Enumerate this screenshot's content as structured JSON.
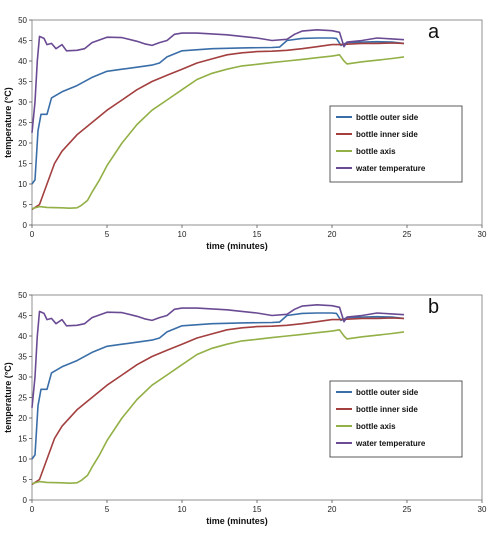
{
  "chart_data": [
    {
      "type": "line",
      "panel_label": "a",
      "xlabel": "time (minutes)",
      "ylabel": "temperature (°C)",
      "xlim": [
        0,
        30
      ],
      "ylim": [
        0,
        50
      ],
      "xticks": [
        0,
        5,
        10,
        15,
        20,
        25,
        30
      ],
      "yticks": [
        0,
        5,
        10,
        15,
        20,
        25,
        30,
        35,
        40,
        45,
        50
      ],
      "legend_position": "right-middle",
      "grid": false,
      "series": [
        {
          "name": "bottle outer side",
          "color": "#3a6ea8",
          "points": [
            [
              0,
              10
            ],
            [
              0.2,
              11
            ],
            [
              0.4,
              23
            ],
            [
              0.6,
              27
            ],
            [
              1,
              27
            ],
            [
              1.3,
              31
            ],
            [
              2,
              32.5
            ],
            [
              3,
              34
            ],
            [
              4,
              36
            ],
            [
              5,
              37.5
            ],
            [
              6,
              38
            ],
            [
              7,
              38.5
            ],
            [
              8,
              39
            ],
            [
              8.5,
              39.5
            ],
            [
              9,
              41
            ],
            [
              10,
              42.5
            ],
            [
              12,
              43
            ],
            [
              14,
              43.2
            ],
            [
              16,
              43.3
            ],
            [
              16.5,
              43.4
            ],
            [
              17,
              45
            ],
            [
              18,
              45.5
            ],
            [
              19,
              45.6
            ],
            [
              20,
              45.6
            ],
            [
              20.3,
              45.5
            ],
            [
              20.6,
              43.8
            ],
            [
              21,
              44.5
            ],
            [
              23,
              44.7
            ],
            [
              24,
              44.6
            ],
            [
              24.8,
              44.3
            ]
          ]
        },
        {
          "name": "bottle inner side",
          "color": "#a33f3f",
          "points": [
            [
              0,
              3.8
            ],
            [
              0.5,
              5
            ],
            [
              1,
              10
            ],
            [
              1.5,
              15
            ],
            [
              2,
              18
            ],
            [
              3,
              22
            ],
            [
              4,
              25
            ],
            [
              5,
              28
            ],
            [
              6,
              30.5
            ],
            [
              7,
              33
            ],
            [
              8,
              35
            ],
            [
              9,
              36.5
            ],
            [
              10,
              38
            ],
            [
              11,
              39.5
            ],
            [
              12,
              40.5
            ],
            [
              13,
              41.5
            ],
            [
              14,
              42
            ],
            [
              15,
              42.3
            ],
            [
              16,
              42.4
            ],
            [
              17,
              42.6
            ],
            [
              18,
              43
            ],
            [
              19,
              43.5
            ],
            [
              20,
              44
            ],
            [
              20.5,
              44
            ],
            [
              21,
              44.1
            ],
            [
              22,
              44.3
            ],
            [
              23,
              44.3
            ],
            [
              24,
              44.4
            ],
            [
              24.8,
              44.3
            ]
          ]
        },
        {
          "name": "bottle axis",
          "color": "#92b046",
          "points": [
            [
              0,
              4
            ],
            [
              0.5,
              4.5
            ],
            [
              1,
              4.3
            ],
            [
              2,
              4.2
            ],
            [
              2.5,
              4.1
            ],
            [
              3,
              4.2
            ],
            [
              3.3,
              4.8
            ],
            [
              3.7,
              6
            ],
            [
              4,
              8
            ],
            [
              4.5,
              11
            ],
            [
              5,
              14.5
            ],
            [
              6,
              20
            ],
            [
              7,
              24.5
            ],
            [
              8,
              28
            ],
            [
              9,
              30.5
            ],
            [
              10,
              33
            ],
            [
              11,
              35.5
            ],
            [
              12,
              37
            ],
            [
              13,
              38
            ],
            [
              14,
              38.8
            ],
            [
              15,
              39.2
            ],
            [
              16,
              39.6
            ],
            [
              17,
              40
            ],
            [
              18,
              40.4
            ],
            [
              19,
              40.8
            ],
            [
              20,
              41.2
            ],
            [
              20.5,
              41.5
            ],
            [
              20.8,
              40
            ],
            [
              21,
              39.3
            ],
            [
              22,
              39.8
            ],
            [
              23,
              40.2
            ],
            [
              24,
              40.6
            ],
            [
              24.8,
              41
            ]
          ]
        },
        {
          "name": "water temperature",
          "color": "#6a4b93",
          "points": [
            [
              0,
              22.5
            ],
            [
              0.2,
              30
            ],
            [
              0.35,
              40
            ],
            [
              0.5,
              46
            ],
            [
              0.8,
              45.5
            ],
            [
              1,
              44
            ],
            [
              1.3,
              44.3
            ],
            [
              1.6,
              43
            ],
            [
              2,
              44
            ],
            [
              2.3,
              42.5
            ],
            [
              3,
              42.6
            ],
            [
              3.5,
              43
            ],
            [
              4,
              44.5
            ],
            [
              5,
              45.8
            ],
            [
              6,
              45.7
            ],
            [
              7,
              44.8
            ],
            [
              7.5,
              44.2
            ],
            [
              8,
              43.8
            ],
            [
              8.5,
              44.5
            ],
            [
              9,
              45
            ],
            [
              9.5,
              46.5
            ],
            [
              10,
              46.8
            ],
            [
              11,
              46.8
            ],
            [
              12,
              46.6
            ],
            [
              13,
              46.4
            ],
            [
              14,
              46
            ],
            [
              15,
              45.6
            ],
            [
              16,
              45
            ],
            [
              17,
              45.3
            ],
            [
              17.5,
              46.5
            ],
            [
              18,
              47.3
            ],
            [
              19,
              47.6
            ],
            [
              20,
              47.4
            ],
            [
              20.5,
              47
            ],
            [
              20.8,
              43.5
            ],
            [
              21,
              44.6
            ],
            [
              22,
              45
            ],
            [
              23,
              45.6
            ],
            [
              24,
              45.4
            ],
            [
              24.8,
              45.2
            ]
          ]
        }
      ]
    },
    {
      "type": "line",
      "panel_label": "b",
      "xlabel": "time (minutes)",
      "ylabel": "temperature (°C)",
      "xlim": [
        0,
        30
      ],
      "ylim": [
        0,
        50
      ],
      "xticks": [
        0,
        5,
        10,
        15,
        20,
        25,
        30
      ],
      "yticks": [
        0,
        5,
        10,
        15,
        20,
        25,
        30,
        35,
        40,
        45,
        50
      ],
      "legend_position": "right-middle",
      "grid": false,
      "series": [
        {
          "name": "bottle outer side",
          "color": "#3a6ea8",
          "points": [
            [
              0,
              10
            ],
            [
              0.2,
              11
            ],
            [
              0.4,
              23
            ],
            [
              0.6,
              27
            ],
            [
              1,
              27
            ],
            [
              1.3,
              31
            ],
            [
              2,
              32.5
            ],
            [
              3,
              34
            ],
            [
              4,
              36
            ],
            [
              5,
              37.5
            ],
            [
              6,
              38
            ],
            [
              7,
              38.5
            ],
            [
              8,
              39
            ],
            [
              8.5,
              39.5
            ],
            [
              9,
              41
            ],
            [
              10,
              42.5
            ],
            [
              12,
              43
            ],
            [
              14,
              43.2
            ],
            [
              16,
              43.3
            ],
            [
              16.5,
              43.4
            ],
            [
              17,
              45
            ],
            [
              18,
              45.5
            ],
            [
              19,
              45.6
            ],
            [
              20,
              45.6
            ],
            [
              20.3,
              45.5
            ],
            [
              20.6,
              43.8
            ],
            [
              21,
              44.5
            ],
            [
              23,
              44.7
            ],
            [
              24,
              44.6
            ],
            [
              24.8,
              44.3
            ]
          ]
        },
        {
          "name": "bottle inner side",
          "color": "#a33f3f",
          "points": [
            [
              0,
              3.8
            ],
            [
              0.5,
              5
            ],
            [
              1,
              10
            ],
            [
              1.5,
              15
            ],
            [
              2,
              18
            ],
            [
              3,
              22
            ],
            [
              4,
              25
            ],
            [
              5,
              28
            ],
            [
              6,
              30.5
            ],
            [
              7,
              33
            ],
            [
              8,
              35
            ],
            [
              9,
              36.5
            ],
            [
              10,
              38
            ],
            [
              11,
              39.5
            ],
            [
              12,
              40.5
            ],
            [
              13,
              41.5
            ],
            [
              14,
              42
            ],
            [
              15,
              42.3
            ],
            [
              16,
              42.4
            ],
            [
              17,
              42.6
            ],
            [
              18,
              43
            ],
            [
              19,
              43.5
            ],
            [
              20,
              44
            ],
            [
              20.5,
              44
            ],
            [
              21,
              44.1
            ],
            [
              22,
              44.3
            ],
            [
              23,
              44.3
            ],
            [
              24,
              44.4
            ],
            [
              24.8,
              44.3
            ]
          ]
        },
        {
          "name": "bottle axis",
          "color": "#92b046",
          "points": [
            [
              0,
              4
            ],
            [
              0.5,
              4.5
            ],
            [
              1,
              4.3
            ],
            [
              2,
              4.2
            ],
            [
              2.5,
              4.1
            ],
            [
              3,
              4.2
            ],
            [
              3.3,
              4.8
            ],
            [
              3.7,
              6
            ],
            [
              4,
              8
            ],
            [
              4.5,
              11
            ],
            [
              5,
              14.5
            ],
            [
              6,
              20
            ],
            [
              7,
              24.5
            ],
            [
              8,
              28
            ],
            [
              9,
              30.5
            ],
            [
              10,
              33
            ],
            [
              11,
              35.5
            ],
            [
              12,
              37
            ],
            [
              13,
              38
            ],
            [
              14,
              38.8
            ],
            [
              15,
              39.2
            ],
            [
              16,
              39.6
            ],
            [
              17,
              40
            ],
            [
              18,
              40.4
            ],
            [
              19,
              40.8
            ],
            [
              20,
              41.2
            ],
            [
              20.5,
              41.5
            ],
            [
              20.8,
              40
            ],
            [
              21,
              39.3
            ],
            [
              22,
              39.8
            ],
            [
              23,
              40.2
            ],
            [
              24,
              40.6
            ],
            [
              24.8,
              41
            ]
          ]
        },
        {
          "name": "water temperature",
          "color": "#6a4b93",
          "points": [
            [
              0,
              22.5
            ],
            [
              0.2,
              30
            ],
            [
              0.35,
              40
            ],
            [
              0.5,
              46
            ],
            [
              0.8,
              45.5
            ],
            [
              1,
              44
            ],
            [
              1.3,
              44.3
            ],
            [
              1.6,
              43
            ],
            [
              2,
              44
            ],
            [
              2.3,
              42.5
            ],
            [
              3,
              42.6
            ],
            [
              3.5,
              43
            ],
            [
              4,
              44.5
            ],
            [
              5,
              45.8
            ],
            [
              6,
              45.7
            ],
            [
              7,
              44.8
            ],
            [
              7.5,
              44.2
            ],
            [
              8,
              43.8
            ],
            [
              8.5,
              44.5
            ],
            [
              9,
              45
            ],
            [
              9.5,
              46.5
            ],
            [
              10,
              46.8
            ],
            [
              11,
              46.8
            ],
            [
              12,
              46.6
            ],
            [
              13,
              46.4
            ],
            [
              14,
              46
            ],
            [
              15,
              45.6
            ],
            [
              16,
              45
            ],
            [
              17,
              45.3
            ],
            [
              17.5,
              46.5
            ],
            [
              18,
              47.3
            ],
            [
              19,
              47.6
            ],
            [
              20,
              47.4
            ],
            [
              20.5,
              47
            ],
            [
              20.8,
              43.5
            ],
            [
              21,
              44.6
            ],
            [
              22,
              45
            ],
            [
              23,
              45.6
            ],
            [
              24,
              45.4
            ],
            [
              24.8,
              45.2
            ]
          ]
        }
      ]
    }
  ]
}
